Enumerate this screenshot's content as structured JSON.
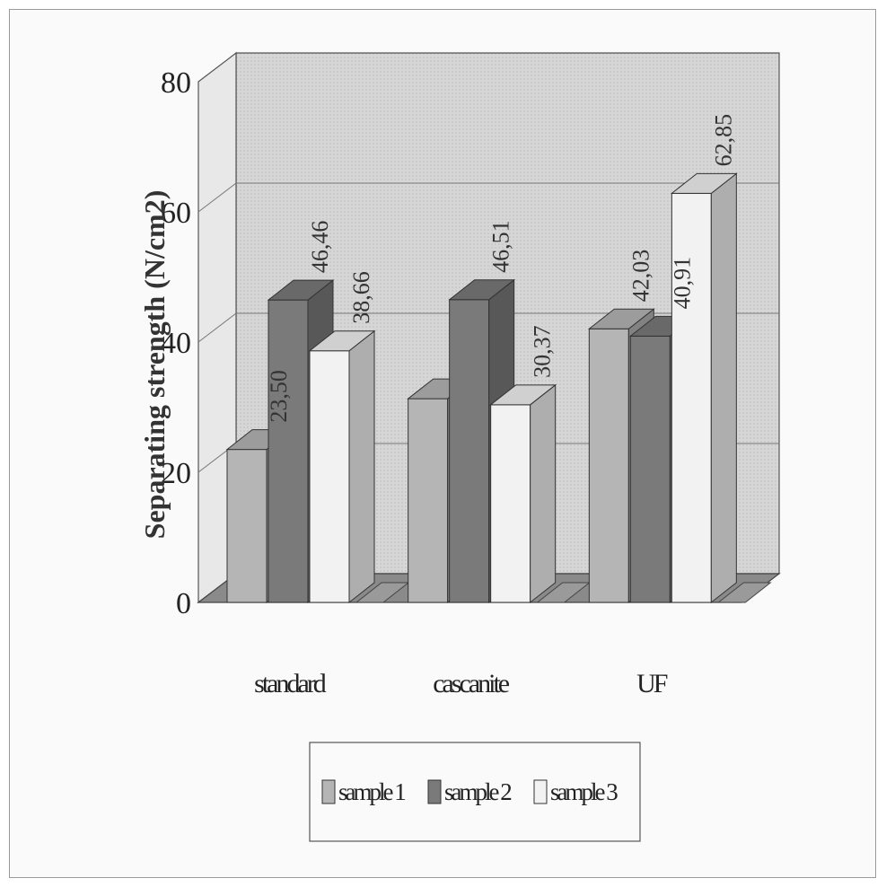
{
  "chart_data": {
    "type": "bar",
    "title": "",
    "ylabel": "Separating strength (N/cm2)",
    "xlabel": "",
    "ylim": [
      0,
      80
    ],
    "yticks": [
      "0",
      "20",
      "40",
      "60",
      "80"
    ],
    "categories": [
      "standard",
      "cascanite",
      "UF"
    ],
    "series": [
      {
        "name": "sample 1",
        "values": [
          23.5,
          31.3,
          42.03
        ],
        "labels": [
          "23,50",
          "",
          "42,03"
        ]
      },
      {
        "name": "sample 2",
        "values": [
          46.46,
          46.51,
          40.91
        ],
        "labels": [
          "46,46",
          "46,51",
          "40,91"
        ]
      },
      {
        "name": "sample 3",
        "values": [
          38.66,
          30.37,
          62.85
        ],
        "labels": [
          "38,66",
          "30,37",
          "62,85"
        ]
      }
    ],
    "grid": true,
    "legend_position": "bottom-center",
    "style": "3d-clustered-column",
    "colors": {
      "sample 1": "#b5b5b5",
      "sample 2": "#7a7a7a",
      "sample 3": "#f2f2f2",
      "back_wall": "#d9d9d9",
      "floor": "#8a8a8a"
    }
  }
}
